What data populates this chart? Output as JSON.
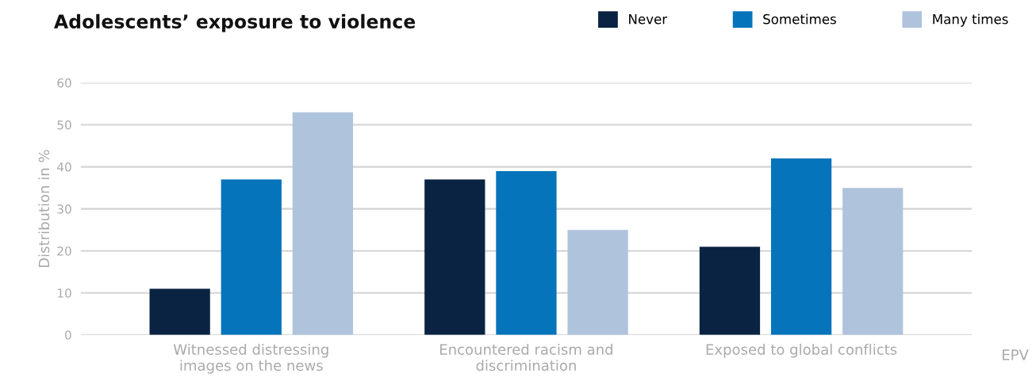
{
  "chart_data": {
    "type": "bar",
    "title": "Adolescents’ exposure to violence",
    "ylabel": "Distribution in %",
    "categories": [
      "Witnessed distressing\nimages on the news",
      "Encountered racism and\ndiscrimination",
      "Exposed to global conflicts"
    ],
    "series": [
      {
        "name": "Never",
        "color": "#0b2343",
        "values": [
          11,
          37,
          21
        ]
      },
      {
        "name": "Sometimes",
        "color": "#0574bb",
        "values": [
          37,
          39,
          42
        ]
      },
      {
        "name": "Many times",
        "color": "#afc4dc",
        "values": [
          53,
          25,
          35
        ]
      }
    ],
    "ylim": [
      0,
      60
    ],
    "yticks": [
      0,
      10,
      20,
      30,
      40,
      50,
      60
    ],
    "grid": "y",
    "legend": "top right",
    "annotations": [
      "EPV"
    ]
  }
}
